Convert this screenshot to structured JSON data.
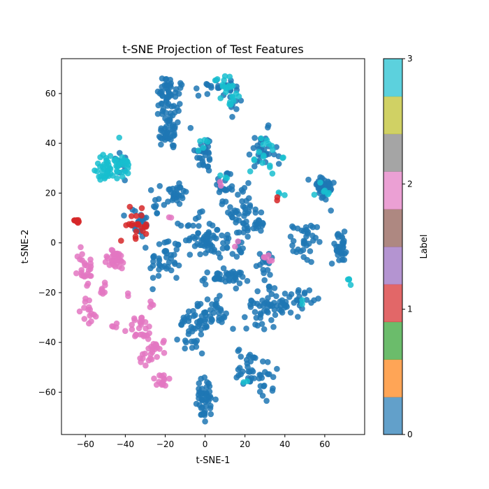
{
  "chart_data": {
    "type": "scatter",
    "title": "t-SNE Projection of Test Features",
    "xlabel": "t-SNE-1",
    "ylabel": "t-SNE-2",
    "xlim": [
      -72,
      80
    ],
    "ylim": [
      -77,
      74
    ],
    "xticks": [
      "−60",
      "−40",
      "−20",
      "0",
      "20",
      "40",
      "60"
    ],
    "xtick_values": [
      -60,
      -40,
      -20,
      0,
      20,
      40,
      60
    ],
    "yticks": [
      "−60",
      "−40",
      "−20",
      "0",
      "20",
      "40",
      "60"
    ],
    "ytick_values": [
      -60,
      -40,
      -20,
      0,
      20,
      40,
      60
    ],
    "grid": false,
    "colorbar": {
      "label": "Label",
      "ticks": [
        "0",
        "1",
        "2",
        "3"
      ],
      "tick_values": [
        0,
        1,
        2,
        3
      ],
      "range": [
        0,
        3
      ],
      "colormap": "tab10",
      "colors": [
        "#1f77b4",
        "#ff7f0e",
        "#2ca02c",
        "#d62728",
        "#9467bd",
        "#8c564b",
        "#e377c2",
        "#7f7f7f",
        "#bcbd22",
        "#17becf"
      ]
    },
    "clusters": [
      {
        "label": 0,
        "x": -17,
        "y": 52,
        "sx": 3.5,
        "sy": 8,
        "n": 60
      },
      {
        "label": 0,
        "x": -20,
        "y": 62,
        "sx": 2,
        "sy": 3,
        "n": 20
      },
      {
        "label": 0,
        "x": -15,
        "y": 20,
        "sx": 3,
        "sy": 2.5,
        "n": 30
      },
      {
        "label": 0,
        "x": -20,
        "y": 43,
        "sx": 2,
        "sy": 2,
        "n": 18
      },
      {
        "label": 0,
        "x": 0,
        "y": 36,
        "sx": 2.5,
        "sy": 4,
        "n": 30
      },
      {
        "label": 0,
        "x": 10,
        "y": 22,
        "sx": 2.5,
        "sy": 4,
        "n": 22
      },
      {
        "label": 0,
        "x": -20,
        "y": -7,
        "sx": 4,
        "sy": 5,
        "n": 40
      },
      {
        "label": 0,
        "x": -5,
        "y": 3,
        "sx": 4,
        "sy": 4,
        "n": 35
      },
      {
        "label": 0,
        "x": 1,
        "y": 0,
        "sx": 2,
        "sy": 3,
        "n": 20
      },
      {
        "label": 0,
        "x": 19,
        "y": 12,
        "sx": 3,
        "sy": 5,
        "n": 40
      },
      {
        "label": 0,
        "x": 27,
        "y": 8,
        "sx": 2,
        "sy": 3,
        "n": 15
      },
      {
        "label": 0,
        "x": 12,
        "y": 0,
        "sx": 4,
        "sy": 3,
        "n": 25
      },
      {
        "label": 0,
        "x": 10,
        "y": -14,
        "sx": 6,
        "sy": 1.5,
        "n": 40
      },
      {
        "label": 0,
        "x": 0,
        "y": -30,
        "sx": 5,
        "sy": 4,
        "n": 45
      },
      {
        "label": 0,
        "x": -7,
        "y": -36,
        "sx": 3,
        "sy": 4,
        "n": 25
      },
      {
        "label": 0,
        "x": 0,
        "y": -62,
        "sx": 3,
        "sy": 4,
        "n": 40
      },
      {
        "label": 0,
        "x": 0,
        "y": -69,
        "sx": 1.5,
        "sy": 1,
        "n": 8
      },
      {
        "label": 0,
        "x": 22,
        "y": -50,
        "sx": 3,
        "sy": 4,
        "n": 30
      },
      {
        "label": 0,
        "x": 30,
        "y": -56,
        "sx": 2,
        "sy": 4,
        "n": 18
      },
      {
        "label": 0,
        "x": 29,
        "y": -25,
        "sx": 4,
        "sy": 5,
        "n": 45
      },
      {
        "label": 0,
        "x": 40,
        "y": -25,
        "sx": 2,
        "sy": 3,
        "n": 15
      },
      {
        "label": 0,
        "x": 48,
        "y": -22,
        "sx": 3,
        "sy": 2,
        "n": 20
      },
      {
        "label": 0,
        "x": 50,
        "y": 0,
        "sx": 3,
        "sy": 4,
        "n": 35
      },
      {
        "label": 0,
        "x": 59,
        "y": 22,
        "sx": 3,
        "sy": 3,
        "n": 40
      },
      {
        "label": 0,
        "x": 68,
        "y": -2,
        "sx": 2.5,
        "sy": 3,
        "n": 30
      },
      {
        "label": 0,
        "x": 5,
        "y": 63,
        "sx": 4,
        "sy": 2,
        "n": 18
      },
      {
        "label": 0,
        "x": 15,
        "y": 58,
        "sx": 2,
        "sy": 3,
        "n": 12
      },
      {
        "label": 0,
        "x": 28,
        "y": 35,
        "sx": 4,
        "sy": 5,
        "n": 30
      },
      {
        "label": 0,
        "x": 30,
        "y": -8,
        "sx": 2,
        "sy": 3,
        "n": 14
      },
      {
        "label": 0,
        "x": -33,
        "y": 8,
        "sx": 3,
        "sy": 3,
        "n": 22
      },
      {
        "label": 0,
        "x": -43,
        "y": 33,
        "sx": 3,
        "sy": 3,
        "n": 10
      },
      {
        "label": 0,
        "x": 8,
        "y": -28,
        "sx": 1.5,
        "sy": 3,
        "n": 10
      },
      {
        "label": 0,
        "x": -25,
        "y": 14,
        "sx": 2,
        "sy": 2,
        "n": 8
      },
      {
        "label": 3,
        "x": -48,
        "y": 32,
        "sx": 3,
        "sy": 3,
        "n": 30
      },
      {
        "label": 3,
        "x": -50,
        "y": 27,
        "sx": 2,
        "sy": 1.5,
        "n": 12
      },
      {
        "label": 3,
        "x": -40,
        "y": 31,
        "sx": 2,
        "sy": 2,
        "n": 18
      },
      {
        "label": 3,
        "x": 10,
        "y": 64,
        "sx": 3,
        "sy": 2,
        "n": 14
      },
      {
        "label": 3,
        "x": 13,
        "y": 58,
        "sx": 3,
        "sy": 2,
        "n": 10
      },
      {
        "label": 3,
        "x": 30,
        "y": 35,
        "sx": 4,
        "sy": 4,
        "n": 18
      },
      {
        "label": 3,
        "x": 60,
        "y": 20,
        "sx": 2,
        "sy": 3,
        "n": 6
      },
      {
        "label": 3,
        "x": 40,
        "y": 20,
        "sx": 1,
        "sy": 1,
        "n": 3
      },
      {
        "label": 3,
        "x": 72,
        "y": -15,
        "sx": 0.7,
        "sy": 1,
        "n": 4
      },
      {
        "label": 3,
        "x": 0,
        "y": 38,
        "sx": 2,
        "sy": 2,
        "n": 5
      },
      {
        "label": 3,
        "x": 10,
        "y": 26,
        "sx": 1,
        "sy": 1,
        "n": 3
      },
      {
        "label": 3,
        "x": 20,
        "y": -56,
        "sx": 1,
        "sy": 1,
        "n": 2
      },
      {
        "label": 3,
        "x": 48,
        "y": -24,
        "sx": 1,
        "sy": 1,
        "n": 2
      },
      {
        "label": 2,
        "x": -60,
        "y": -10,
        "sx": 2,
        "sy": 4,
        "n": 25
      },
      {
        "label": 2,
        "x": -45,
        "y": -7,
        "sx": 3,
        "sy": 2,
        "n": 35
      },
      {
        "label": 2,
        "x": -51,
        "y": -18,
        "sx": 1.5,
        "sy": 1.5,
        "n": 8
      },
      {
        "label": 2,
        "x": -58,
        "y": -27,
        "sx": 2,
        "sy": 3,
        "n": 15
      },
      {
        "label": 2,
        "x": -32,
        "y": -35,
        "sx": 3,
        "sy": 3,
        "n": 25
      },
      {
        "label": 2,
        "x": -28,
        "y": -45,
        "sx": 3,
        "sy": 2,
        "n": 15
      },
      {
        "label": 2,
        "x": -23,
        "y": -42,
        "sx": 2,
        "sy": 2,
        "n": 10
      },
      {
        "label": 2,
        "x": -22,
        "y": -55,
        "sx": 2.5,
        "sy": 1.5,
        "n": 14
      },
      {
        "label": 2,
        "x": -27,
        "y": -24,
        "sx": 1,
        "sy": 2,
        "n": 4
      },
      {
        "label": 2,
        "x": -45,
        "y": -33,
        "sx": 1,
        "sy": 1,
        "n": 4
      },
      {
        "label": 2,
        "x": -37,
        "y": -20,
        "sx": 1,
        "sy": 1,
        "n": 2
      },
      {
        "label": 2,
        "x": 31,
        "y": -6,
        "sx": 1.5,
        "sy": 1,
        "n": 5
      },
      {
        "label": 2,
        "x": 8,
        "y": 25,
        "sx": 1,
        "sy": 1,
        "n": 2
      },
      {
        "label": 2,
        "x": -18,
        "y": 10,
        "sx": 1,
        "sy": 1,
        "n": 2
      },
      {
        "label": 2,
        "x": 17,
        "y": -1,
        "sx": 1,
        "sy": 1,
        "n": 2
      },
      {
        "label": 1,
        "x": -64,
        "y": 9,
        "sx": 0.7,
        "sy": 0.7,
        "n": 8
      },
      {
        "label": 1,
        "x": -36,
        "y": 8,
        "sx": 3,
        "sy": 3,
        "n": 16
      },
      {
        "label": 1,
        "x": -31,
        "y": 6,
        "sx": 1.5,
        "sy": 1.5,
        "n": 6
      },
      {
        "label": 1,
        "x": 36,
        "y": 18,
        "sx": 0.4,
        "sy": 0.4,
        "n": 2
      }
    ]
  }
}
